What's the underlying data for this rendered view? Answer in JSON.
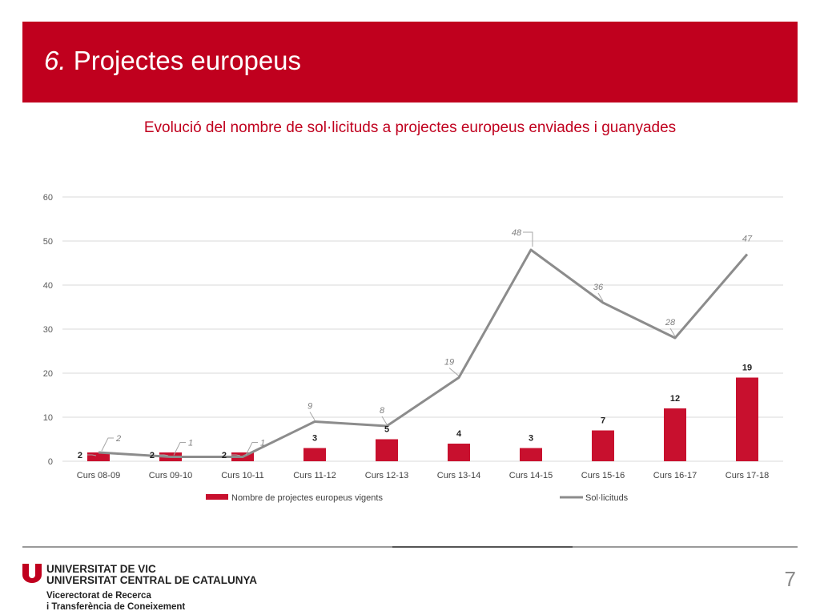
{
  "slide": {
    "title_number": "6.",
    "title_text": " Projectes europeus",
    "page_number": "7"
  },
  "footer": {
    "university_line1": "UNIVERSITAT DE VIC",
    "university_line2": "UNIVERSITAT CENTRAL DE CATALUNYA",
    "vicerectorat_line1": "Vicerectorat de Recerca",
    "vicerectorat_line2": "i Transferència de Coneixement"
  },
  "colors": {
    "brand_red": "#c0001e",
    "bar_red": "#c8102e",
    "line_gray": "#8c8c8c",
    "grid": "#d9d9d9"
  },
  "chart_data": {
    "type": "bar",
    "title": "Evolució del nombre de sol·licituds a projectes europeus enviades i guanyades",
    "categories": [
      "Curs 08-09",
      "Curs 09-10",
      "Curs 10-11",
      "Curs 11-12",
      "Curs 12-13",
      "Curs 13-14",
      "Curs 14-15",
      "Curs 15-16",
      "Curs 16-17",
      "Curs 17-18"
    ],
    "series": [
      {
        "name": "Nombre de projectes europeus vigents",
        "type": "bar",
        "values": [
          2,
          2,
          2,
          3,
          5,
          4,
          3,
          7,
          12,
          19
        ]
      },
      {
        "name": "Sol·licituds",
        "type": "line",
        "values": [
          2,
          1,
          1,
          9,
          8,
          19,
          48,
          36,
          28,
          47
        ]
      }
    ],
    "ylim": [
      0,
      60
    ],
    "yticks": [
      0,
      10,
      20,
      30,
      40,
      50,
      60
    ],
    "grid": true,
    "legend": "bottom"
  }
}
